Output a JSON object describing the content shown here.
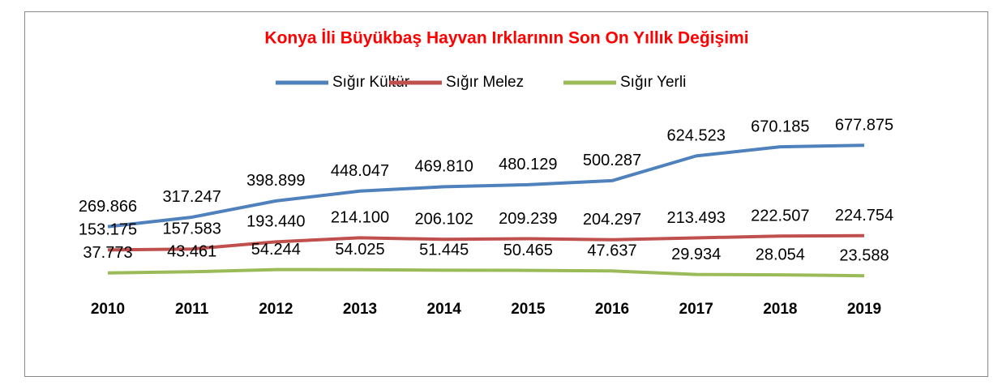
{
  "chart_data": {
    "type": "line",
    "title": "Konya İli Büyükbaş Hayvan Irklarının Son On Yıllık Değişimi",
    "categories": [
      "2010",
      "2011",
      "2012",
      "2013",
      "2014",
      "2015",
      "2016",
      "2017",
      "2018",
      "2019"
    ],
    "series": [
      {
        "name": "Sığır Kültür",
        "color": "#4f81bd",
        "values": [
          269866,
          317247,
          398899,
          448047,
          469810,
          480129,
          500287,
          624523,
          670185,
          677875
        ],
        "value_labels": [
          "269.866",
          "317.247",
          "398.899",
          "448.047",
          "469.810",
          "480.129",
          "500.287",
          "624.523",
          "670.185",
          "677.875"
        ]
      },
      {
        "name": "Sığır Melez",
        "color": "#c0504d",
        "values": [
          153175,
          157583,
          193440,
          214100,
          206102,
          209239,
          204297,
          213493,
          222507,
          224754
        ],
        "value_labels": [
          "153.175",
          "157.583",
          "193.440",
          "214.100",
          "206.102",
          "209.239",
          "204.297",
          "213.493",
          "222.507",
          "224.754"
        ]
      },
      {
        "name": "Sığır Yerli",
        "color": "#9bbb59",
        "values": [
          37773,
          43461,
          54244,
          54025,
          51445,
          50465,
          47637,
          29934,
          28054,
          23588
        ],
        "value_labels": [
          "37.773",
          "43.461",
          "54.244",
          "54.025",
          "51.445",
          "50.465",
          "47.637",
          "29.934",
          "28.054",
          "23.588"
        ]
      }
    ],
    "ylim": [
      0,
      1000000
    ],
    "legend": "top"
  }
}
